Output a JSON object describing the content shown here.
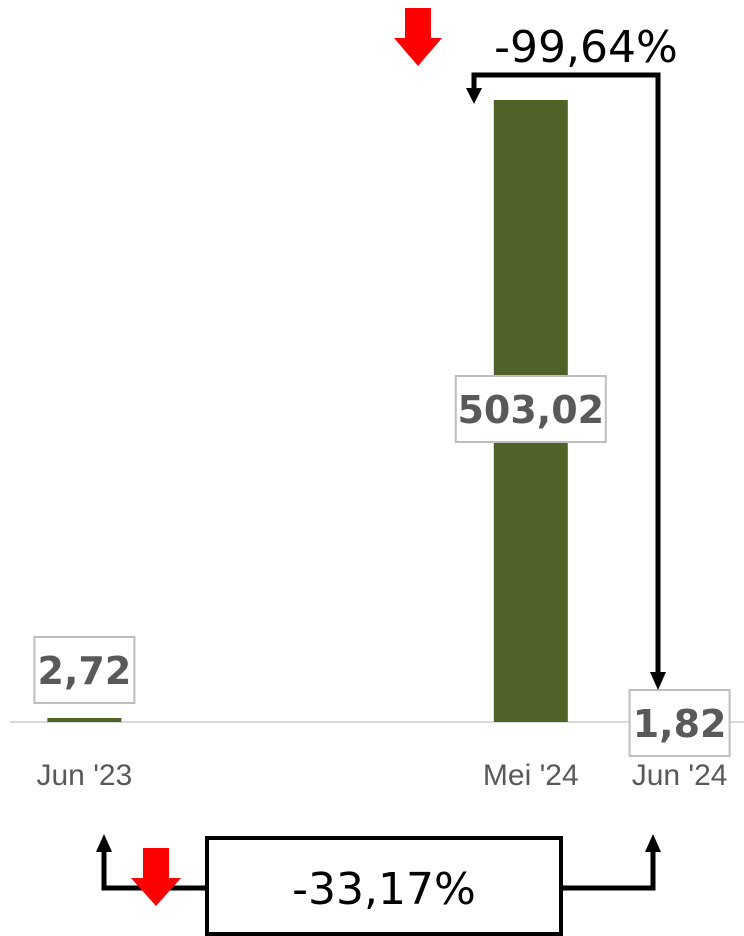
{
  "chart_data": {
    "type": "bar",
    "categories": [
      "Jun '23",
      "",
      "",
      "Mei '24",
      "Jun '24"
    ],
    "values": [
      2.72,
      null,
      null,
      503.02,
      1.82
    ],
    "data_labels": [
      "2,72",
      "",
      "",
      "503,02",
      "1,82"
    ],
    "ylim": [
      0,
      503.02
    ],
    "grid": false,
    "title": "",
    "xlabel": "",
    "ylabel": "",
    "colors": {
      "bar": "#4f6228",
      "label_border": "#bfbfbf",
      "down_arrow": "#ff0000",
      "connector": "#000000"
    },
    "annotations": [
      {
        "name": "mom-change",
        "text": "-99,64%",
        "from": "Mei '24",
        "to": "Jun '24",
        "direction": "down-icon"
      },
      {
        "name": "yoy-change",
        "text": "-33,17%",
        "from": "Jun '23",
        "to": "Jun '24",
        "direction": "down-icon"
      }
    ]
  }
}
